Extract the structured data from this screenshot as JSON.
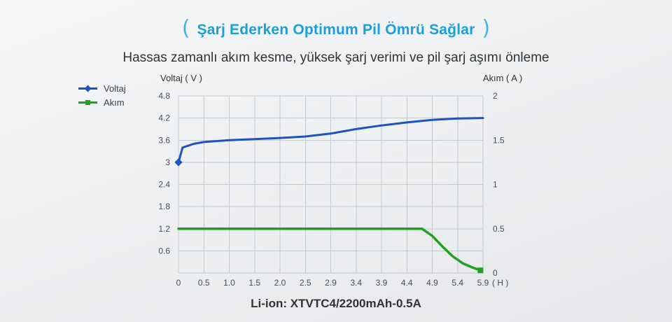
{
  "header": {
    "bracket_left": "(",
    "title": "Şarj Ederken Optimum Pil Ömrü Sağlar",
    "bracket_right": ")",
    "subtitle": "Hassas zamanlı akım kesme, yüksek şarj verimi ve pil şarj aşımı önleme"
  },
  "legend": [
    {
      "label": "Voltaj",
      "color": "#1c53c0",
      "marker": "diamond"
    },
    {
      "label": "Akım",
      "color": "#1fa021",
      "marker": "square"
    }
  ],
  "footer": {
    "caption": "Li-ion: XTVTC4/2200mAh-0.5A"
  },
  "colors": {
    "title_blue": "#1b9fd9",
    "voltage_line": "#1c53c0",
    "current_line": "#1fa021",
    "grid": "#c7cacd"
  },
  "chart_data": {
    "type": "line",
    "title": "Şarj Ederken Optimum Pil Ömrü Sağlar",
    "x_unit_label": "( H )",
    "x_tick_labels": [
      "0",
      "0.5",
      "1.0",
      "1.5",
      "2.0",
      "2.5",
      "2.9",
      "3.4",
      "3.9",
      "4.4",
      "4.9",
      "5.4",
      "5.9"
    ],
    "voltage_axis": {
      "label": "Voltaj ( V )",
      "min": 0,
      "max": 4.8,
      "tick_labels": [
        "4.8",
        "4.2",
        "3.6",
        "3",
        "2.4",
        "1.8",
        "1.2",
        "0.6"
      ]
    },
    "current_axis": {
      "label": "Akım ( A )",
      "min": 0,
      "max": 2,
      "tick_labels": [
        "2",
        "1.5",
        "1",
        "0.5",
        "0"
      ]
    },
    "grid": true,
    "legend_position": "top-left",
    "series": [
      {
        "name": "Voltaj",
        "axis": "voltage",
        "color": "#1c53c0",
        "marker": "diamond",
        "marker_at": "start",
        "width": 3,
        "points": [
          [
            0,
            3.0
          ],
          [
            0.08,
            3.4
          ],
          [
            0.3,
            3.5
          ],
          [
            0.5,
            3.55
          ],
          [
            1.0,
            3.6
          ],
          [
            1.5,
            3.63
          ],
          [
            2.0,
            3.66
          ],
          [
            2.5,
            3.7
          ],
          [
            2.9,
            3.78
          ],
          [
            3.4,
            3.9
          ],
          [
            3.9,
            4.0
          ],
          [
            4.4,
            4.08
          ],
          [
            4.9,
            4.15
          ],
          [
            5.4,
            4.19
          ],
          [
            5.9,
            4.2
          ]
        ]
      },
      {
        "name": "Akım",
        "axis": "current",
        "color": "#1fa021",
        "marker": "square",
        "marker_at": "end",
        "width": 3.5,
        "points": [
          [
            0,
            0.5
          ],
          [
            4.7,
            0.5
          ],
          [
            4.9,
            0.42
          ],
          [
            5.1,
            0.3
          ],
          [
            5.3,
            0.19
          ],
          [
            5.5,
            0.11
          ],
          [
            5.7,
            0.06
          ],
          [
            5.85,
            0.03
          ]
        ]
      }
    ]
  }
}
